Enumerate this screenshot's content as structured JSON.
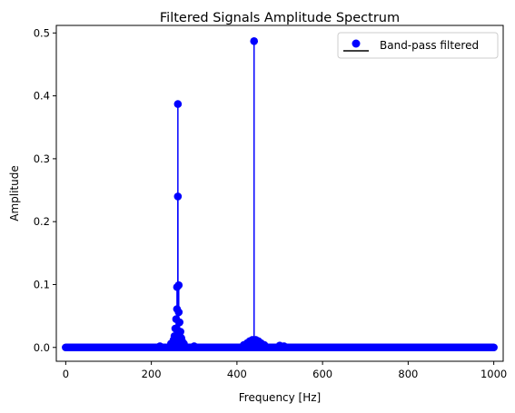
{
  "chart_data": {
    "type": "stem",
    "title": "Filtered Signals Amplitude Spectrum",
    "xlabel": "Frequency [Hz]",
    "ylabel": "Amplitude",
    "xlim": [
      -22,
      1022
    ],
    "ylim": [
      -0.022,
      0.512
    ],
    "xticks": [
      0,
      200,
      400,
      600,
      800,
      1000
    ],
    "yticks": [
      0.0,
      0.1,
      0.2,
      0.3,
      0.4,
      0.5
    ],
    "xtick_labels": [
      "0",
      "200",
      "400",
      "600",
      "800",
      "1000"
    ],
    "ytick_labels": [
      "0.0",
      "0.1",
      "0.2",
      "0.3",
      "0.4",
      "0.5"
    ],
    "grid": false,
    "legend": {
      "position": "upper right",
      "entries": [
        "Band-pass filtered"
      ]
    },
    "series": [
      {
        "name": "Band-pass filtered",
        "color": "#0000ff",
        "baseline_color": "#000000",
        "baseline": 0.0,
        "x_range": [
          0,
          1000
        ],
        "x_step": 2,
        "peaks": [
          {
            "x": 440,
            "y": 0.487
          },
          {
            "x": 262,
            "y": 0.387
          },
          {
            "x": 262,
            "y": 0.24
          },
          {
            "x": 264,
            "y": 0.099
          },
          {
            "x": 260,
            "y": 0.096
          },
          {
            "x": 264,
            "y": 0.056
          },
          {
            "x": 260,
            "y": 0.061
          },
          {
            "x": 258,
            "y": 0.045
          },
          {
            "x": 266,
            "y": 0.04
          },
          {
            "x": 256,
            "y": 0.03
          },
          {
            "x": 268,
            "y": 0.025
          },
          {
            "x": 254,
            "y": 0.018
          },
          {
            "x": 270,
            "y": 0.015
          },
          {
            "x": 252,
            "y": 0.012
          },
          {
            "x": 272,
            "y": 0.01
          },
          {
            "x": 250,
            "y": 0.008
          },
          {
            "x": 246,
            "y": 0.006
          },
          {
            "x": 276,
            "y": 0.006
          },
          {
            "x": 430,
            "y": 0.01
          },
          {
            "x": 436,
            "y": 0.012
          },
          {
            "x": 444,
            "y": 0.012
          },
          {
            "x": 450,
            "y": 0.01
          },
          {
            "x": 456,
            "y": 0.007
          },
          {
            "x": 424,
            "y": 0.007
          },
          {
            "x": 416,
            "y": 0.004
          },
          {
            "x": 464,
            "y": 0.004
          },
          {
            "x": 500,
            "y": 0.003
          },
          {
            "x": 510,
            "y": 0.002
          },
          {
            "x": 220,
            "y": 0.002
          },
          {
            "x": 300,
            "y": 0.002
          }
        ]
      }
    ]
  }
}
